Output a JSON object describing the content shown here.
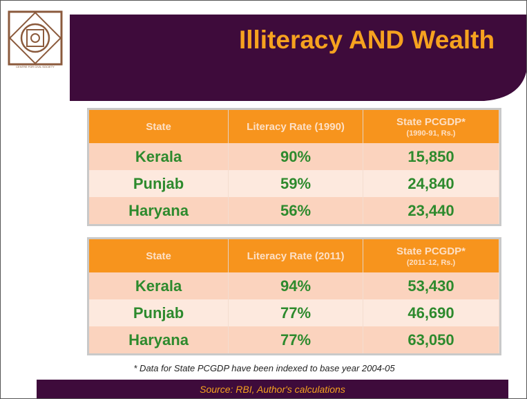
{
  "logo": {
    "caption": "CENTRE FOR CIVIL SOCIETY"
  },
  "title": "Illiteracy AND Wealth",
  "tables": [
    {
      "columns": [
        "State",
        "Literacy Rate (1990)",
        "State PCGDP*"
      ],
      "column_note": "(1990-91, Rs.)",
      "rows": [
        [
          "Kerala",
          "90%",
          "15,850"
        ],
        [
          "Punjab",
          "59%",
          "24,840"
        ],
        [
          "Haryana",
          "56%",
          "23,440"
        ]
      ]
    },
    {
      "columns": [
        "State",
        "Literacy Rate (2011)",
        "State PCGDP*"
      ],
      "column_note": "(2011-12, Rs.)",
      "rows": [
        [
          "Kerala",
          "94%",
          "53,430"
        ],
        [
          "Punjab",
          "77%",
          "46,690"
        ],
        [
          "Haryana",
          "77%",
          "63,050"
        ]
      ]
    }
  ],
  "footnote": "* Data for State PCGDP have been indexed to base year 2004-05",
  "source": "Source: RBI, Author's calculations"
}
